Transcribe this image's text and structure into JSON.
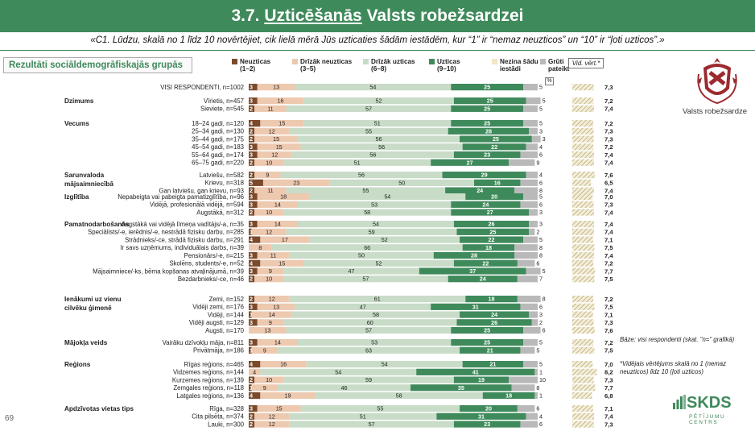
{
  "header": {
    "title_prefix": "3.7. ",
    "title_underlined": "Uzticēšanās",
    "title_suffix": " Valsts robežsardzei",
    "question": "«C1. Lūdzu, skalā no 1 līdz 10 novērtējiet, cik lielā mērā Jūs uzticaties šādām iestādēm, kur “1” ir “nemaz neuzticos” un “10” ir “ļoti uzticos”.»"
  },
  "section_label": "Rezultāti sociāldemogrāfiskajās grupās",
  "percent_label": "%",
  "avg_header": "Vid. vērt.*",
  "logo_label": "Valsts robežsardze",
  "base_note": "Bāze: visi respondenti (skat. \"n=\" grafikā)",
  "avg_note": "*Vidējais vērtējums skalā no 1 (nemaz neuzticos) līdz 10 (ļoti uzticos)",
  "brand": "SKDS",
  "brand_sub": "PĒTĪJUMU CENTRS",
  "page_number": "69",
  "colors": {
    "c1": "#7b4a2a",
    "c2": "#edc9b0",
    "c3": "#c8dcc8",
    "c4": "#3f8a5b",
    "c5": "#f1e6c7",
    "c6": "#b9b9b9",
    "title_bg": "#3f8a5b"
  },
  "chart_data": {
    "type": "bar",
    "orientation": "horizontal-stacked-100",
    "series": [
      {
        "name": "Neuzticas (1–2)",
        "color": "#7b4a2a"
      },
      {
        "name": "Drīzāk neuzticas (3–5)",
        "color": "#edc9b0"
      },
      {
        "name": "Drīzāk uzticas (6–8)",
        "color": "#c8dcc8"
      },
      {
        "name": "Uzticas (9–10)",
        "color": "#3f8a5b"
      },
      {
        "name": "Nezina šādu iestādi",
        "color": "#f1e6c7"
      },
      {
        "name": "Grūti pateikt",
        "color": "#b9b9b9"
      }
    ],
    "groups": [
      {
        "title": "",
        "rows": [
          {
            "label": "VISI RESPONDENTI, n=1002",
            "v": [
              3,
              13,
              54,
              25,
              0,
              5
            ],
            "a": "7,3"
          }
        ]
      },
      {
        "title": "Dzimums",
        "rows": [
          {
            "label": "Vīrietis, n=457",
            "v": [
              3,
              16,
              52,
              25,
              0,
              5
            ],
            "a": "7,2"
          },
          {
            "label": "Sieviete, n=545",
            "v": [
              2,
              11,
              57,
              25,
              0,
              5
            ],
            "a": "7,4"
          }
        ]
      },
      {
        "title": "Vecums",
        "rows": [
          {
            "label": "18–24 gadi, n=120",
            "v": [
              4,
              15,
              51,
              25,
              0,
              5
            ],
            "a": "7,2"
          },
          {
            "label": "25–34 gadi, n=130",
            "v": [
              2,
              12,
              55,
              28,
              0,
              3
            ],
            "a": "7,3"
          },
          {
            "label": "35–44 gadi, n=175",
            "v": [
              2,
              15,
              56,
              25,
              0,
              3
            ],
            "a": "7,3"
          },
          {
            "label": "45–54 gadi, n=183",
            "v": [
              3,
              15,
              56,
              22,
              0,
              4
            ],
            "a": "7,2"
          },
          {
            "label": "55–64 gadi, n=174",
            "v": [
              3,
              12,
              56,
              23,
              0,
              6
            ],
            "a": "7,4"
          },
          {
            "label": "65–75 gadi, n=220",
            "v": [
              2,
              10,
              51,
              27,
              0,
              9
            ],
            "a": "7,4"
          }
        ]
      },
      {
        "title": "Sarunvaloda mājsaimniecībā",
        "rows": [
          {
            "label": "Latviešu, n=582",
            "v": [
              2,
              9,
              56,
              29,
              0,
              4
            ],
            "a": "7,6"
          },
          {
            "label": "Krievu, n=318",
            "v": [
              5,
              23,
              50,
              16,
              0,
              6
            ],
            "a": "6,5"
          },
          {
            "label": "Gan latviešu, gan krievu, n=93",
            "v": [
              2,
              11,
              55,
              24,
              0,
              8
            ],
            "a": "7,4"
          }
        ]
      },
      {
        "title": "Izglītība",
        "rows": [
          {
            "label": "Nepabeigta vai pabeigta pamatizglītība, n=96",
            "v": [
              3,
              18,
              54,
              20,
              0,
              5
            ],
            "a": "7,0"
          },
          {
            "label": "Vidējā, profesionālā vidējā, n=594",
            "v": [
              3,
              14,
              53,
              24,
              0,
              6
            ],
            "a": "7,3"
          },
          {
            "label": "Augstākā, n=312",
            "v": [
              2,
              10,
              58,
              27,
              0,
              3
            ],
            "a": "7,4"
          }
        ]
      },
      {
        "title": "Pamatnodarbošanās",
        "rows": [
          {
            "label": "Augstākā vai vidējā līmeņa vadītājs/-a, n=35",
            "v": [
              3,
              14,
              54,
              26,
              0,
              3
            ],
            "a": "7,4"
          },
          {
            "label": "Speciālists/-e, ierēdnis/-e, nestrādā fizisku darbu, n=285",
            "v": [
              1,
              12,
              59,
              25,
              0,
              2
            ],
            "a": "7,4"
          },
          {
            "label": "Strādnieks/-ce, strādā fizisku darbu, n=291",
            "v": [
              4,
              17,
              52,
              22,
              0,
              5
            ],
            "a": "7,1"
          },
          {
            "label": "Ir savs uzņēmums, individuālais darbs, n=39",
            "v": [
              0,
              8,
              66,
              18,
              0,
              8
            ],
            "a": "7,5"
          },
          {
            "label": "Pensionārs/-e, n=215",
            "v": [
              3,
              11,
              50,
              28,
              0,
              8
            ],
            "a": "7,4"
          },
          {
            "label": "Skolēns, students/-e, n=52",
            "v": [
              4,
              15,
              52,
              22,
              0,
              6
            ],
            "a": "7,2"
          },
          {
            "label": "Mājsaimniece/-ks, bērna kopšanas atvaļinājumā, n=39",
            "v": [
              3,
              9,
              47,
              37,
              0,
              5
            ],
            "a": "7,7"
          },
          {
            "label": "Bezdarbnieks/-ce, n=46",
            "v": [
              2,
              10,
              57,
              24,
              0,
              7
            ],
            "a": "7,5"
          }
        ]
      },
      {
        "title": "Ienākumi uz vienu cilvēku ģimenē",
        "rows": [
          {
            "label": "Zemi, n=152",
            "v": [
              2,
              12,
              61,
              18,
              0,
              8
            ],
            "a": "7,2"
          },
          {
            "label": "Vidēji zemi, n=176",
            "v": [
              3,
              13,
              47,
              31,
              0,
              6
            ],
            "a": "7,5"
          },
          {
            "label": "Vidēji, n=144",
            "v": [
              1,
              14,
              58,
              24,
              0,
              3
            ],
            "a": "7,1"
          },
          {
            "label": "Vidēji augsti, n=129",
            "v": [
              3,
              9,
              60,
              26,
              0,
              2
            ],
            "a": "7,3"
          },
          {
            "label": "Augsti, n=170",
            "v": [
              0,
              13,
              57,
              25,
              0,
              6
            ],
            "a": "7,6"
          }
        ]
      },
      {
        "title": "Mājokļa veids",
        "rows": [
          {
            "label": "Vairāku dzīvokļu māja, n=811",
            "v": [
              3,
              14,
              53,
              25,
              0,
              5
            ],
            "a": "7,2"
          },
          {
            "label": "Privātmāja, n=186",
            "v": [
              1,
              9,
              63,
              21,
              0,
              5
            ],
            "a": "7,5"
          }
        ]
      },
      {
        "title": "Reģions",
        "rows": [
          {
            "label": "Rīgas reģions, n=465",
            "v": [
              4,
              16,
              54,
              21,
              0,
              5
            ],
            "a": "7,0"
          },
          {
            "label": "Vidzemes reģions, n=144",
            "v": [
              0,
              4,
              54,
              41,
              0,
              1
            ],
            "a": "8,2"
          },
          {
            "label": "Kurzemes reģions, n=139",
            "v": [
              2,
              10,
              59,
              19,
              0,
              10
            ],
            "a": "7,3"
          },
          {
            "label": "Zemgales reģions, n=118",
            "v": [
              1,
              9,
              46,
              35,
              0,
              8
            ],
            "a": "7,7"
          },
          {
            "label": "Latgales reģions, n=136",
            "v": [
              4,
              19,
              58,
              18,
              0,
              1
            ],
            "a": "6,8"
          }
        ]
      },
      {
        "title": "Apdzīvotas vietas tips",
        "rows": [
          {
            "label": "Rīga, n=328",
            "v": [
              3,
              15,
              55,
              20,
              0,
              6
            ],
            "a": "7,1"
          },
          {
            "label": "Cita pilsēta, n=374",
            "v": [
              2,
              12,
              51,
              31,
              0,
              4
            ],
            "a": "7,4"
          },
          {
            "label": "Lauki, n=300",
            "v": [
              2,
              12,
              57,
              23,
              0,
              6
            ],
            "a": "7,3"
          }
        ]
      }
    ]
  }
}
